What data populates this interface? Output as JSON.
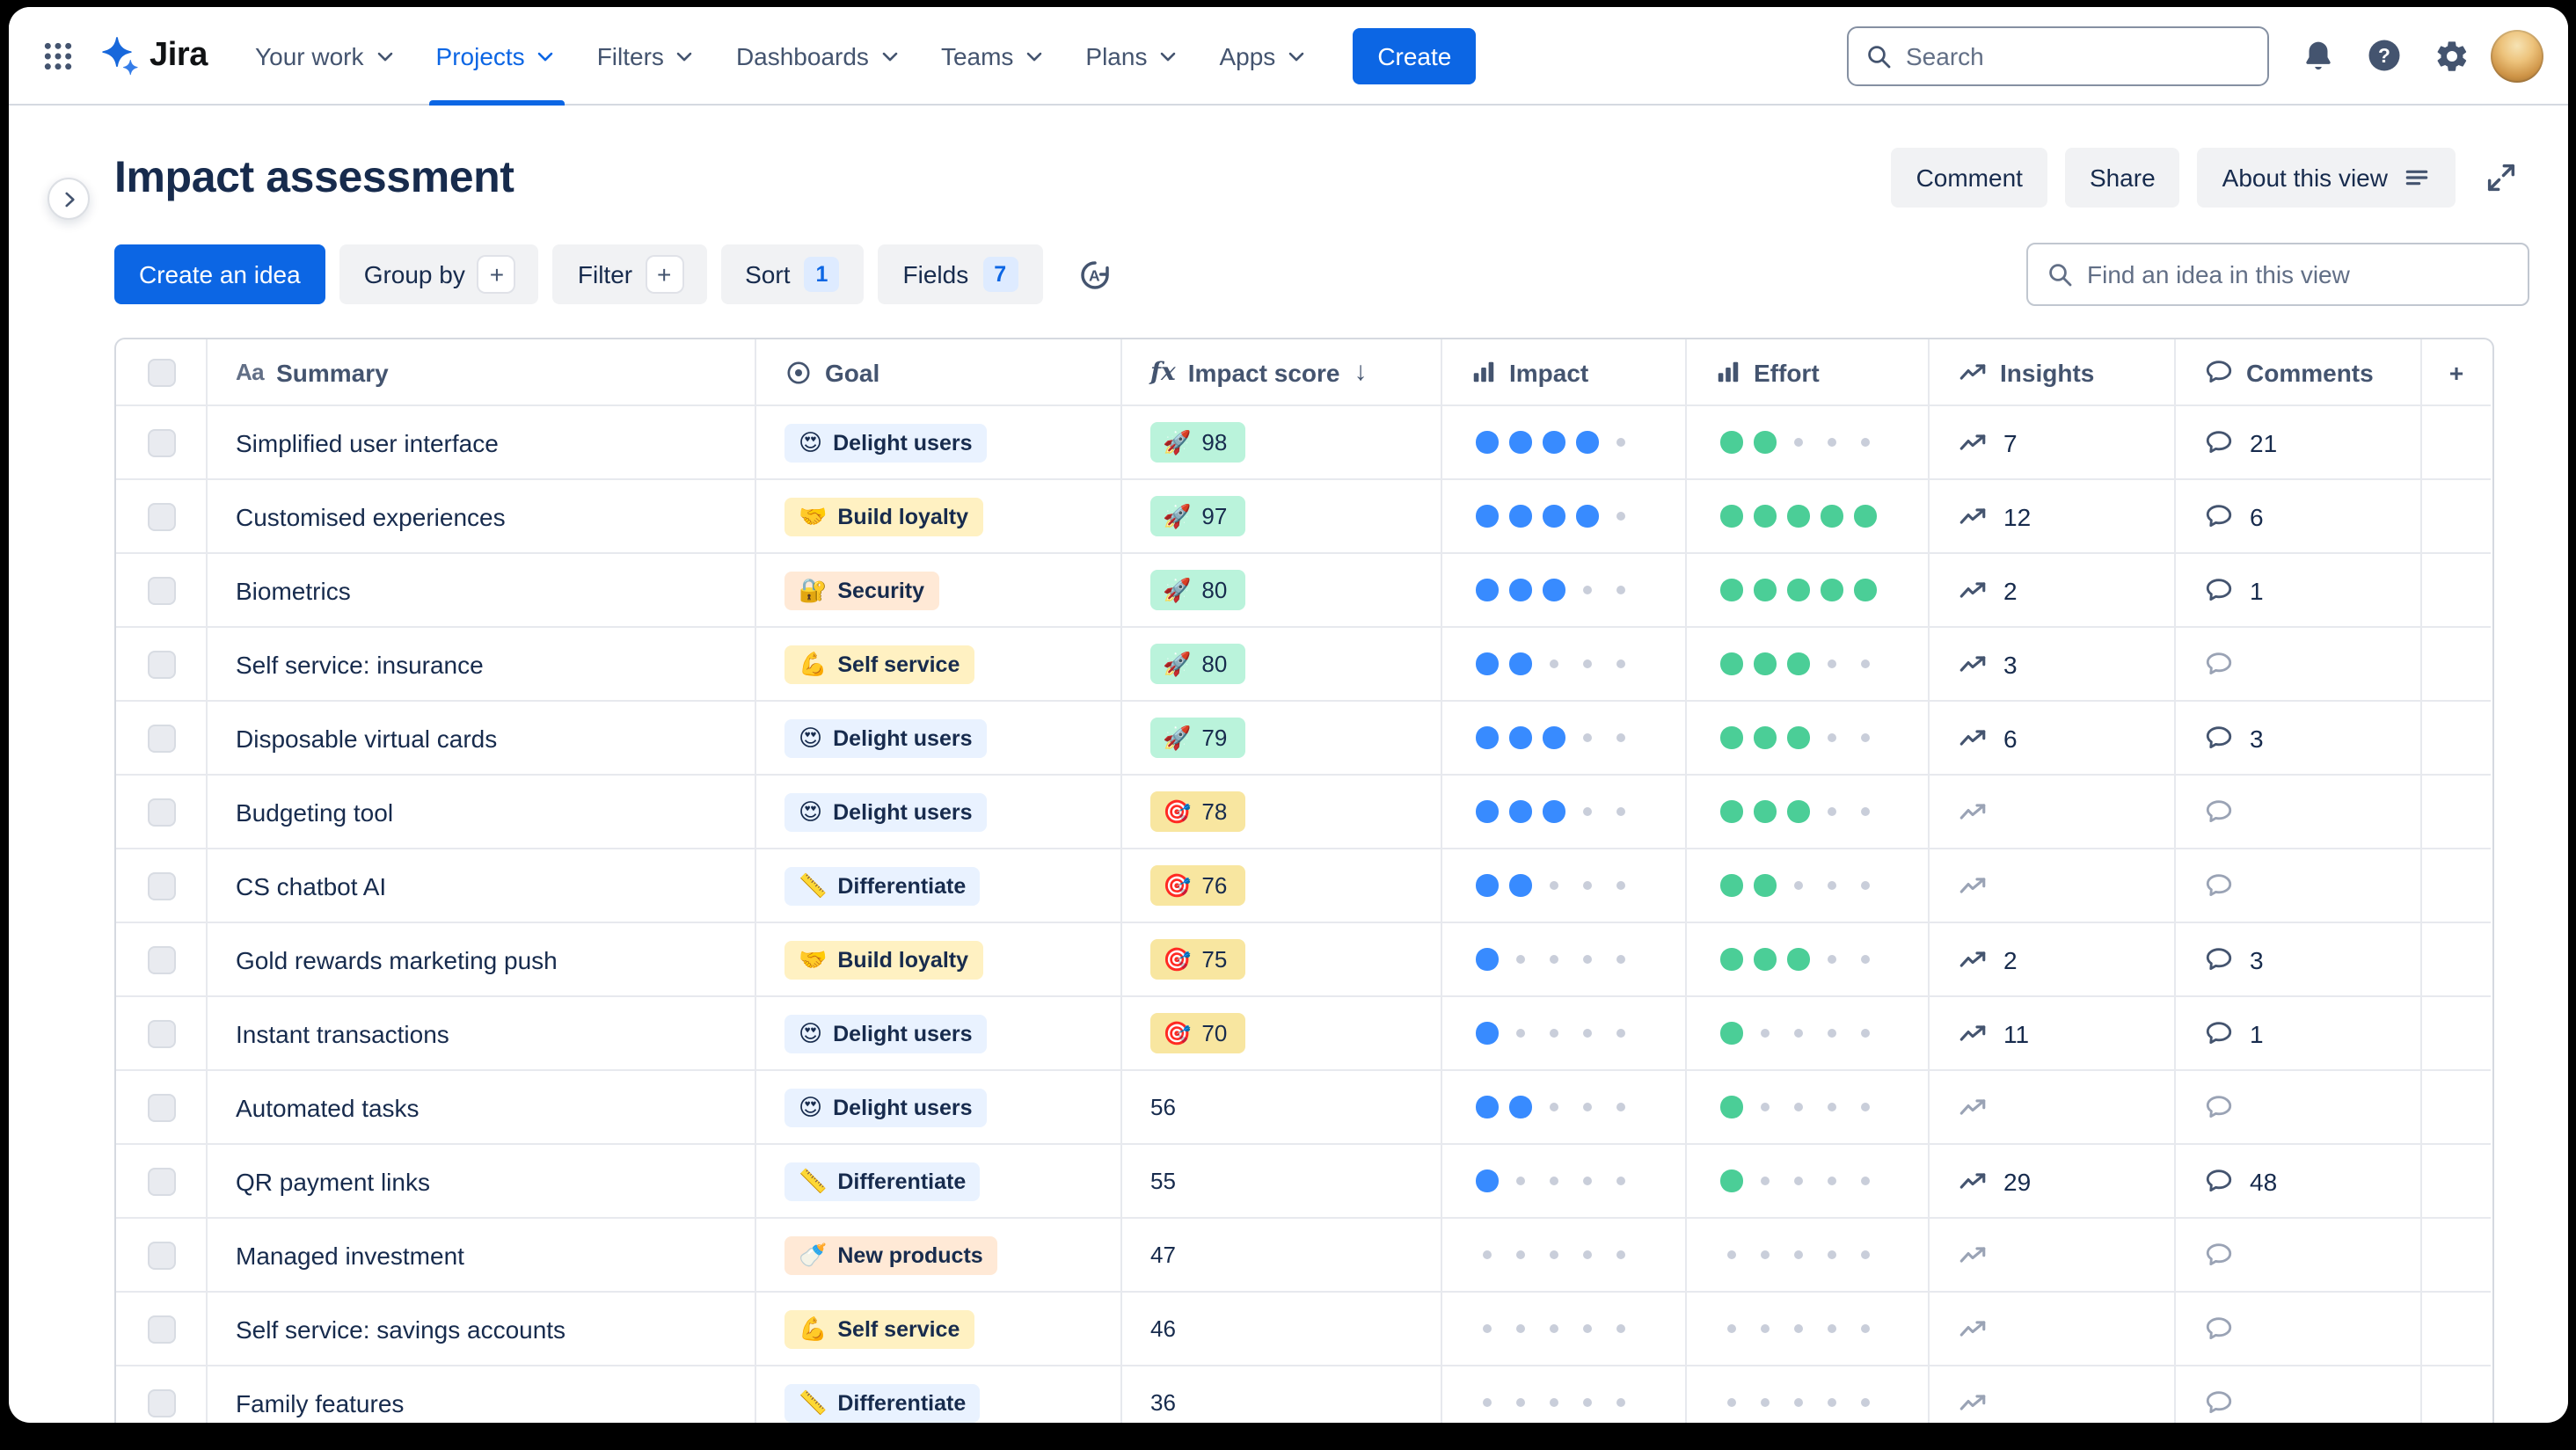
{
  "colors": {
    "accent": "#0C66E4",
    "text-primary": "#172B4D",
    "text-secondary": "#44546F",
    "border": "#D5D9E0",
    "row-border": "#E7E9EE",
    "btn-subtle": "#F1F2F4",
    "count-badge": "#DEEBFF",
    "goal-blue": "#E9F2FF",
    "goal-yellow": "#FFF1C2",
    "goal-peach": "#FFE9D6",
    "score-green": "#BAF3DB",
    "score-yellow": "#F8E6A0",
    "dot-blue": "#388BFF",
    "dot-green": "#4BCE97",
    "dot-empty": "#C9CEDA"
  },
  "nav": {
    "logo_text": "Jira",
    "items": [
      {
        "label": "Your work",
        "active": false
      },
      {
        "label": "Projects",
        "active": true
      },
      {
        "label": "Filters",
        "active": false
      },
      {
        "label": "Dashboards",
        "active": false
      },
      {
        "label": "Teams",
        "active": false
      },
      {
        "label": "Plans",
        "active": false
      },
      {
        "label": "Apps",
        "active": false
      }
    ],
    "create_label": "Create",
    "search_placeholder": "Search"
  },
  "header": {
    "title": "Impact assessment",
    "comment_label": "Comment",
    "share_label": "Share",
    "about_label": "About this view"
  },
  "toolbar": {
    "create_idea_label": "Create an idea",
    "group_by_label": "Group by",
    "filter_label": "Filter",
    "sort_label": "Sort",
    "sort_count": "1",
    "fields_label": "Fields",
    "fields_count": "7",
    "plus_glyph": "+",
    "find_placeholder": "Find an idea in this view"
  },
  "table": {
    "columns": {
      "summary": "Summary",
      "goal": "Goal",
      "impact_score": "Impact score",
      "impact": "Impact",
      "effort": "Effort",
      "insights": "Insights",
      "comments": "Comments",
      "add_column": "+"
    },
    "header_icons": {
      "summary_text": "Aa",
      "formula_text": "fx",
      "sort_desc": "↓"
    },
    "rows": [
      {
        "summary": "Simplified user interface",
        "goal": "Delight users",
        "goal_icon": "😍",
        "goal_color": "blue",
        "score": "98",
        "score_badge": "green",
        "score_icon": "🚀",
        "impact": 4,
        "effort": 2,
        "insights": "7",
        "comments": "21"
      },
      {
        "summary": "Customised experiences",
        "goal": "Build loyalty",
        "goal_icon": "🤝",
        "goal_color": "yellow",
        "score": "97",
        "score_badge": "green",
        "score_icon": "🚀",
        "impact": 4,
        "effort": 5,
        "insights": "12",
        "comments": "6"
      },
      {
        "summary": "Biometrics",
        "goal": "Security",
        "goal_icon": "🔐",
        "goal_color": "peach",
        "score": "80",
        "score_badge": "green",
        "score_icon": "🚀",
        "impact": 3,
        "effort": 5,
        "insights": "2",
        "comments": "1"
      },
      {
        "summary": "Self service: insurance",
        "goal": "Self service",
        "goal_icon": "💪",
        "goal_color": "yellow",
        "score": "80",
        "score_badge": "green",
        "score_icon": "🚀",
        "impact": 2,
        "effort": 3,
        "insights": "3",
        "comments": ""
      },
      {
        "summary": "Disposable virtual cards",
        "goal": "Delight users",
        "goal_icon": "😍",
        "goal_color": "blue",
        "score": "79",
        "score_badge": "green",
        "score_icon": "🚀",
        "impact": 3,
        "effort": 3,
        "insights": "6",
        "comments": "3"
      },
      {
        "summary": "Budgeting tool",
        "goal": "Delight users",
        "goal_icon": "😍",
        "goal_color": "blue",
        "score": "78",
        "score_badge": "yellow",
        "score_icon": "🎯",
        "impact": 3,
        "effort": 3,
        "insights": "",
        "comments": ""
      },
      {
        "summary": "CS chatbot AI",
        "goal": "Differentiate",
        "goal_icon": "📏",
        "goal_color": "blue",
        "score": "76",
        "score_badge": "yellow",
        "score_icon": "🎯",
        "impact": 2,
        "effort": 2,
        "insights": "",
        "comments": ""
      },
      {
        "summary": "Gold rewards marketing push",
        "goal": "Build loyalty",
        "goal_icon": "🤝",
        "goal_color": "yellow",
        "score": "75",
        "score_badge": "yellow",
        "score_icon": "🎯",
        "impact": 1,
        "effort": 3,
        "insights": "2",
        "comments": "3"
      },
      {
        "summary": "Instant transactions",
        "goal": "Delight users",
        "goal_icon": "😍",
        "goal_color": "blue",
        "score": "70",
        "score_badge": "yellow",
        "score_icon": "🎯",
        "impact": 1,
        "effort": 1,
        "insights": "11",
        "comments": "1"
      },
      {
        "summary": "Automated tasks",
        "goal": "Delight users",
        "goal_icon": "😍",
        "goal_color": "blue",
        "score": "56",
        "score_badge": "none",
        "score_icon": "",
        "impact": 2,
        "effort": 1,
        "insights": "",
        "comments": ""
      },
      {
        "summary": "QR payment links",
        "goal": "Differentiate",
        "goal_icon": "📏",
        "goal_color": "blue",
        "score": "55",
        "score_badge": "none",
        "score_icon": "",
        "impact": 1,
        "effort": 1,
        "insights": "29",
        "comments": "48"
      },
      {
        "summary": "Managed investment",
        "goal": "New products",
        "goal_icon": "🍼",
        "goal_color": "peach",
        "score": "47",
        "score_badge": "none",
        "score_icon": "",
        "impact": 0,
        "effort": 0,
        "insights": "",
        "comments": ""
      },
      {
        "summary": "Self service: savings accounts",
        "goal": "Self service",
        "goal_icon": "💪",
        "goal_color": "yellow",
        "score": "46",
        "score_badge": "none",
        "score_icon": "",
        "impact": 0,
        "effort": 0,
        "insights": "",
        "comments": ""
      },
      {
        "summary": "Family features",
        "goal": "Differentiate",
        "goal_icon": "📏",
        "goal_color": "blue",
        "score": "36",
        "score_badge": "none",
        "score_icon": "",
        "impact": 0,
        "effort": 0,
        "insights": "",
        "comments": ""
      }
    ]
  }
}
